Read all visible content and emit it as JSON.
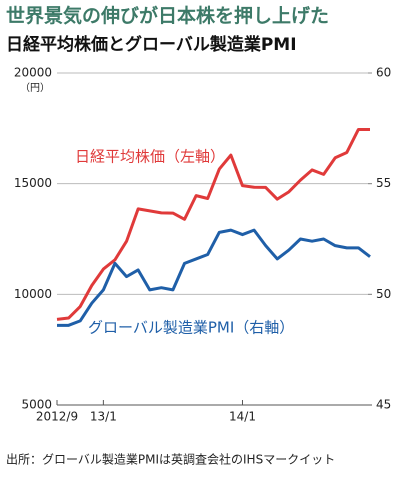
{
  "chart_data": {
    "type": "line",
    "title": "世界景気の伸びが日本株を押し上げた",
    "subtitle": "日経平均株価とグローバル製造業PMI",
    "y_unit": "（円）",
    "source": "出所：グローバル製造業PMIは英調査会社のIHSマークイット",
    "categories": [
      "2012/9",
      null,
      null,
      null,
      "13/1",
      null,
      null,
      null,
      null,
      null,
      null,
      null,
      null,
      null,
      null,
      null,
      "14/1",
      null,
      null,
      null,
      null,
      null,
      null,
      null,
      null,
      null,
      null,
      null
    ],
    "ylim": [
      5000,
      20000
    ],
    "yticks": [
      5000,
      10000,
      15000,
      20000
    ],
    "y2lim": [
      45,
      60
    ],
    "y2ticks": [
      45,
      50,
      55,
      60
    ],
    "grid": true,
    "series": [
      {
        "name": "日経平均株価（左軸）",
        "color": "#e03a3a",
        "values": [
          8870,
          8930,
          9450,
          10400,
          11140,
          11560,
          12400,
          13860,
          13770,
          13680,
          13670,
          13390,
          14460,
          14330,
          15660,
          16290,
          14910,
          14840,
          14830,
          14300,
          14630,
          15160,
          15620,
          15420,
          16170,
          16410,
          17450,
          17450
        ]
      },
      {
        "name": "グローバル製造業PMI（右軸）",
        "color": "#1f5fa8",
        "axis": "y2",
        "values": [
          48.6,
          48.6,
          48.8,
          49.6,
          50.2,
          51.4,
          50.8,
          51.1,
          50.2,
          50.3,
          50.2,
          51.4,
          51.6,
          51.8,
          52.8,
          52.9,
          52.7,
          52.9,
          52.2,
          51.6,
          52.0,
          52.5,
          52.4,
          52.5,
          52.2,
          52.1,
          52.1,
          51.7
        ]
      }
    ]
  }
}
